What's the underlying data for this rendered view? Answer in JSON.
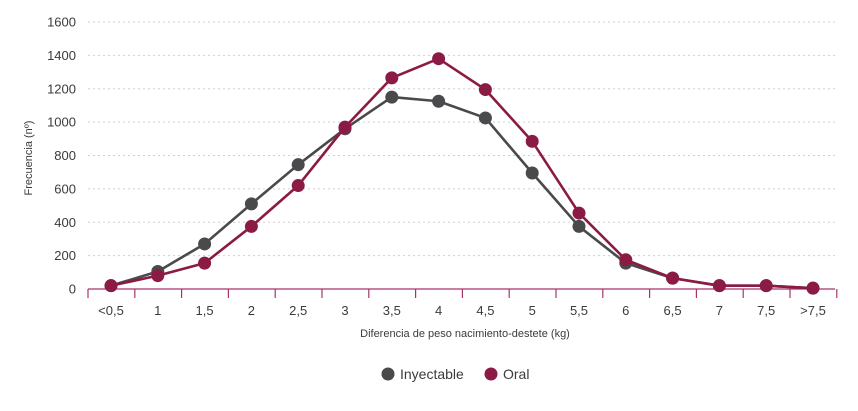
{
  "chart_data": {
    "type": "line",
    "xlabel": "Diferencia de peso nacimiento-destete (kg)",
    "ylabel": "Frecuencia (nº)",
    "ylim": [
      0,
      1600
    ],
    "yticks": [
      0,
      200,
      400,
      600,
      800,
      1000,
      1200,
      1400,
      1600
    ],
    "categories": [
      "<0,5",
      "1",
      "1,5",
      "2",
      "2,5",
      "3",
      "3,5",
      "4",
      "4,5",
      "5",
      "5,5",
      "6",
      "6,5",
      "7",
      "7,5",
      ">7,5"
    ],
    "grid": "horizontal-dashed",
    "legend": "bottom-center",
    "colors": {
      "Inyectable": "#4a4a4c",
      "Oral": "#8b1a44",
      "axis": "#a8336a"
    },
    "series": [
      {
        "name": "Inyectable",
        "values": [
          20,
          105,
          270,
          510,
          745,
          960,
          1150,
          1125,
          1025,
          695,
          375,
          155,
          65,
          20,
          20,
          5
        ]
      },
      {
        "name": "Oral",
        "values": [
          20,
          80,
          155,
          375,
          620,
          970,
          1265,
          1380,
          1195,
          885,
          455,
          175,
          65,
          20,
          20,
          5
        ]
      }
    ]
  }
}
